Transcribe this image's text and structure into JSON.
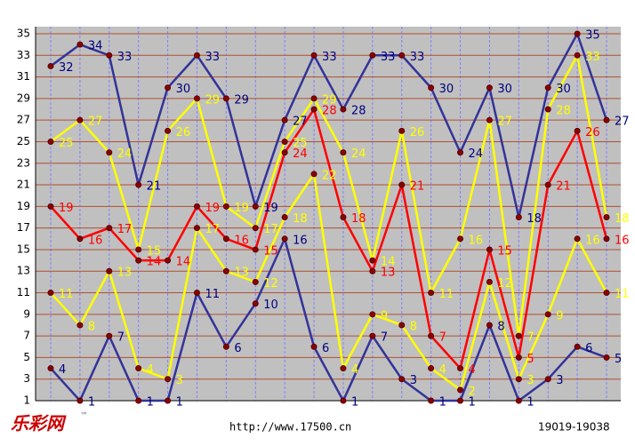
{
  "chart_data": {
    "type": "line",
    "logo": "乐彩网",
    "logo_mark": "™",
    "url": "http://www.17500.cn",
    "period": "19019-19038",
    "ylim": [
      1,
      35
    ],
    "yticks": [
      1,
      3,
      5,
      7,
      9,
      11,
      13,
      15,
      17,
      19,
      21,
      23,
      25,
      27,
      29,
      31,
      33,
      35
    ],
    "grid": true,
    "marker_color": "#8b0000",
    "series": [
      {
        "color": "#333399",
        "label_color": "#000080",
        "values": [
          4,
          1,
          7,
          1,
          1,
          11,
          6,
          10,
          16,
          6,
          1,
          7,
          3,
          1,
          1,
          8,
          1,
          3,
          6,
          5
        ]
      },
      {
        "color": "#ffff00",
        "label_color": "#ffff00",
        "values": [
          11,
          8,
          13,
          4,
          3,
          17,
          13,
          12,
          18,
          22,
          4,
          9,
          8,
          4,
          2,
          12,
          3,
          9,
          16,
          11
        ]
      },
      {
        "color": "#ff0000",
        "label_color": "#ff0000",
        "values": [
          19,
          16,
          17,
          14,
          14,
          19,
          16,
          15,
          24,
          28,
          18,
          13,
          21,
          7,
          4,
          15,
          5,
          21,
          26,
          16
        ]
      },
      {
        "color": "#ffff00",
        "label_color": "#ffff00",
        "values": [
          25,
          27,
          24,
          15,
          26,
          29,
          19,
          17,
          25,
          29,
          24,
          14,
          26,
          11,
          16,
          27,
          7,
          28,
          33,
          18
        ]
      },
      {
        "color": "#333399",
        "label_color": "#000080",
        "values": [
          32,
          34,
          33,
          21,
          30,
          33,
          29,
          19,
          27,
          33,
          28,
          33,
          33,
          30,
          24,
          30,
          18,
          30,
          35,
          27
        ]
      }
    ]
  }
}
